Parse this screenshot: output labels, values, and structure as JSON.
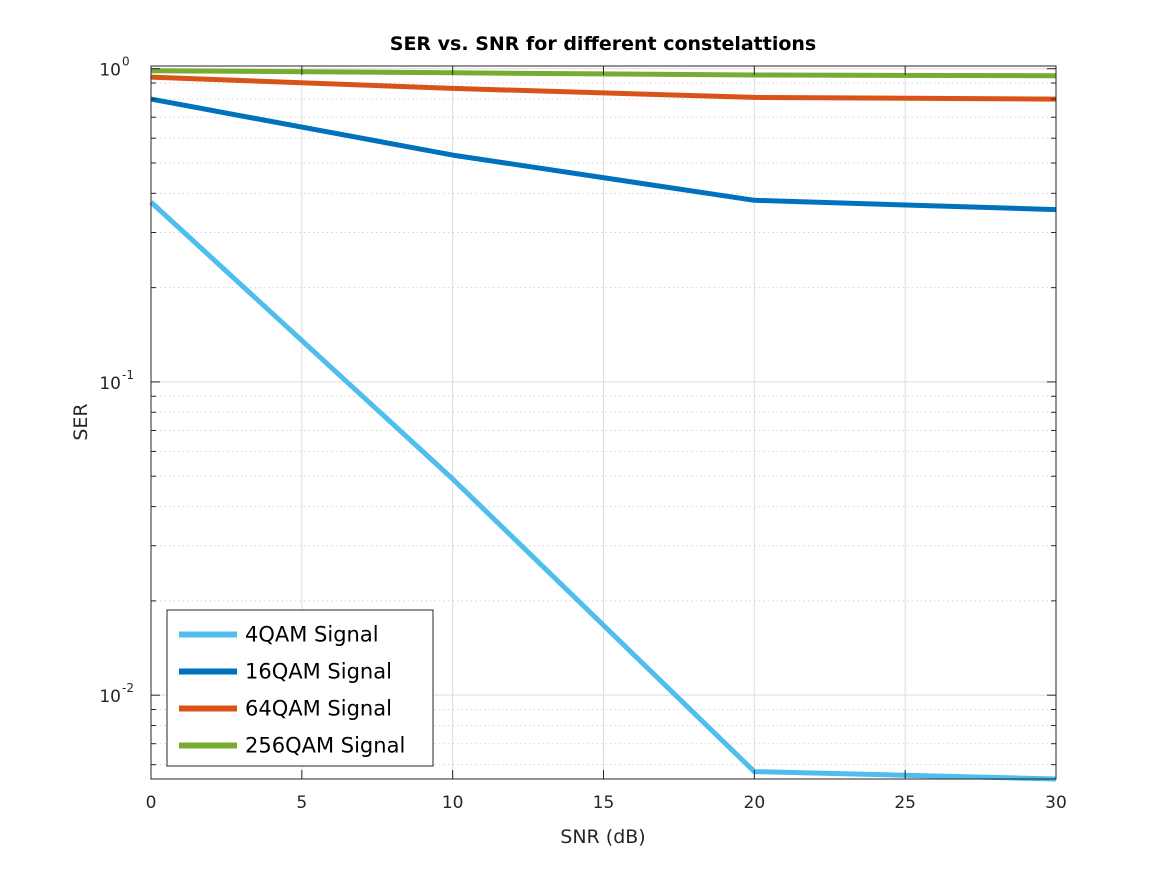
{
  "chart_data": {
    "type": "line",
    "title": "SER vs. SNR for different constelattions",
    "xlabel": "SNR (dB)",
    "ylabel": "SER",
    "xlim": [
      0,
      30
    ],
    "ylim": [
      0.0054,
      1.02
    ],
    "yscale": "log",
    "grid": true,
    "legend_position": "bottom-left",
    "x_ticks": [
      "0",
      "5",
      "10",
      "15",
      "20",
      "25",
      "30"
    ],
    "x": [
      0,
      10,
      20,
      30
    ],
    "series": [
      {
        "name": "4QAM Signal",
        "color": "#4DBEEE",
        "values": [
          0.375,
          0.049,
          0.0057,
          0.0054
        ]
      },
      {
        "name": "16QAM Signal",
        "color": "#0072BD",
        "values": [
          0.8,
          0.53,
          0.38,
          0.355
        ]
      },
      {
        "name": "64QAM Signal",
        "color": "#D95319",
        "values": [
          0.94,
          0.865,
          0.81,
          0.8
        ]
      },
      {
        "name": "256QAM Signal",
        "color": "#77AC30",
        "values": [
          0.985,
          0.97,
          0.955,
          0.95
        ]
      }
    ]
  }
}
